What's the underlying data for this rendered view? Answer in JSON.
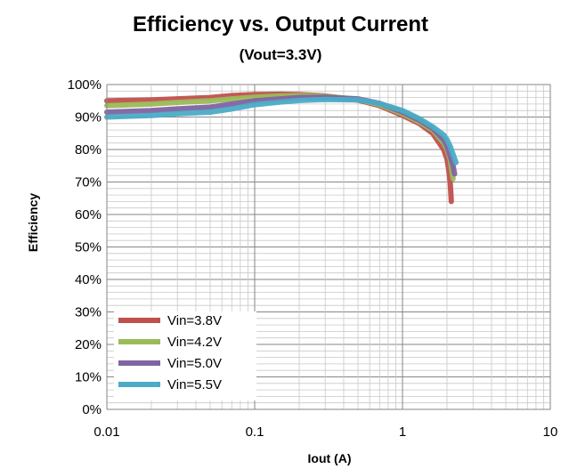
{
  "chart_data": {
    "type": "line",
    "title": "Efficiency vs. Output Current",
    "subtitle": "(Vout=3.3V)",
    "xlabel": "Iout (A)",
    "ylabel": "Efficiency",
    "x_scale": "log",
    "xlim": [
      0.01,
      10
    ],
    "ylim": [
      0,
      100
    ],
    "x_ticks": [
      0.01,
      0.1,
      1,
      10
    ],
    "x_tick_labels": [
      "0.01",
      "0.1",
      "1",
      "10"
    ],
    "y_ticks": [
      0,
      10,
      20,
      30,
      40,
      50,
      60,
      70,
      80,
      90,
      100
    ],
    "y_tick_labels": [
      "0%",
      "10%",
      "20%",
      "30%",
      "40%",
      "50%",
      "60%",
      "70%",
      "80%",
      "90%",
      "100%"
    ],
    "grid": true,
    "legend_position": "bottom-left",
    "series": [
      {
        "name": "Vin=3.8V",
        "color": "#c0504d",
        "x": [
          0.01,
          0.02,
          0.03,
          0.04,
          0.05,
          0.07,
          0.1,
          0.15,
          0.2,
          0.3,
          0.5,
          0.7,
          1.0,
          1.3,
          1.6,
          1.9,
          2.0,
          2.05,
          2.1,
          2.12,
          2.14
        ],
        "y": [
          95.0,
          95.3,
          95.6,
          95.8,
          96.0,
          96.6,
          96.9,
          97.0,
          96.9,
          96.5,
          95.2,
          93.5,
          90.5,
          88.0,
          85.0,
          80.0,
          77.0,
          74.0,
          70.0,
          67.0,
          64.0
        ]
      },
      {
        "name": "Vin=4.2V",
        "color": "#9bbb59",
        "x": [
          0.01,
          0.02,
          0.03,
          0.04,
          0.05,
          0.07,
          0.1,
          0.15,
          0.2,
          0.3,
          0.5,
          0.7,
          1.0,
          1.3,
          1.6,
          1.9,
          2.0,
          2.1,
          2.15,
          2.2
        ],
        "y": [
          93.5,
          94.0,
          94.5,
          94.8,
          95.0,
          95.6,
          96.1,
          96.5,
          96.6,
          96.4,
          95.4,
          93.8,
          91.0,
          88.5,
          86.0,
          82.0,
          80.0,
          77.0,
          74.0,
          71.0
        ]
      },
      {
        "name": "Vin=5.0V",
        "color": "#8064a2",
        "x": [
          0.01,
          0.02,
          0.03,
          0.04,
          0.05,
          0.07,
          0.1,
          0.15,
          0.2,
          0.3,
          0.5,
          0.7,
          1.0,
          1.3,
          1.6,
          1.9,
          2.0,
          2.1,
          2.2,
          2.25
        ],
        "y": [
          91.5,
          92.0,
          92.5,
          92.8,
          93.0,
          94.0,
          95.0,
          95.6,
          96.0,
          96.1,
          95.6,
          94.2,
          91.5,
          89.0,
          86.5,
          83.0,
          81.0,
          78.0,
          75.0,
          72.5
        ]
      },
      {
        "name": "Vin=5.5V",
        "color": "#4bacc6",
        "x": [
          0.01,
          0.02,
          0.03,
          0.04,
          0.05,
          0.07,
          0.1,
          0.15,
          0.2,
          0.3,
          0.5,
          0.7,
          1.0,
          1.3,
          1.6,
          1.9,
          2.0,
          2.1,
          2.2,
          2.3
        ],
        "y": [
          90.0,
          90.5,
          91.0,
          91.3,
          91.5,
          92.5,
          93.8,
          94.6,
          95.1,
          95.4,
          95.3,
          94.2,
          92.0,
          89.5,
          87.0,
          84.5,
          83.0,
          81.0,
          78.5,
          76.0
        ]
      }
    ]
  }
}
